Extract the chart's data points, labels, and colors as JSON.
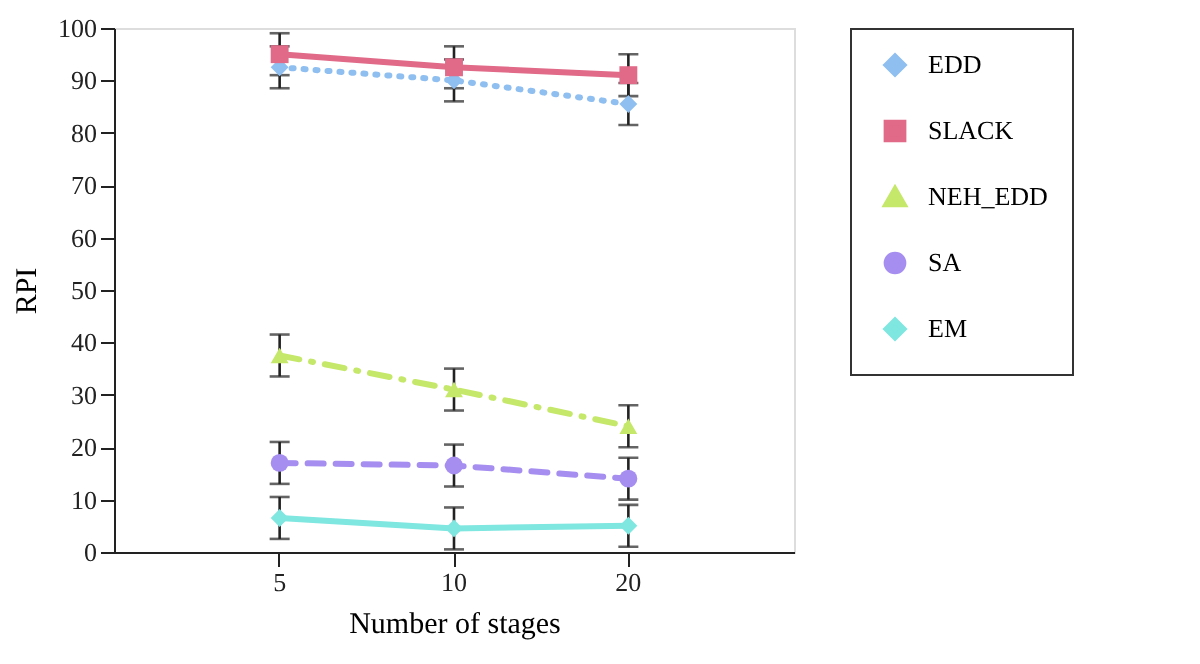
{
  "chart_data": {
    "type": "line",
    "xlabel": "Number of stages",
    "ylabel": "RPI",
    "categories": [
      "5",
      "10",
      "20"
    ],
    "ylim": [
      0,
      100
    ],
    "yticks": [
      0,
      10,
      20,
      30,
      40,
      50,
      60,
      70,
      80,
      90,
      100
    ],
    "grid": false,
    "legend": "right",
    "series": [
      {
        "name": "EDD",
        "color": "#8fbff0",
        "marker": "diamond",
        "line_style": "dotted",
        "values": [
          92.5,
          90,
          85.5
        ],
        "errors": [
          4,
          4,
          4
        ]
      },
      {
        "name": "SLACK",
        "color": "#e06a88",
        "marker": "square",
        "line_style": "solid",
        "values": [
          95,
          92.5,
          91
        ],
        "errors": [
          4,
          4,
          4
        ]
      },
      {
        "name": "NEH_EDD",
        "color": "#c5e86a",
        "marker": "triangle",
        "line_style": "dashdot",
        "values": [
          37.5,
          31,
          24
        ],
        "errors": [
          4,
          4,
          4
        ]
      },
      {
        "name": "SA",
        "color": "#a58ef0",
        "marker": "circle",
        "line_style": "dashed",
        "values": [
          17,
          16.5,
          14
        ],
        "errors": [
          4,
          4,
          4
        ]
      },
      {
        "name": "EM",
        "color": "#7fe6e0",
        "marker": "diamond",
        "line_style": "solid",
        "values": [
          6.5,
          4.5,
          5
        ],
        "errors": [
          4,
          4,
          4
        ]
      }
    ]
  }
}
